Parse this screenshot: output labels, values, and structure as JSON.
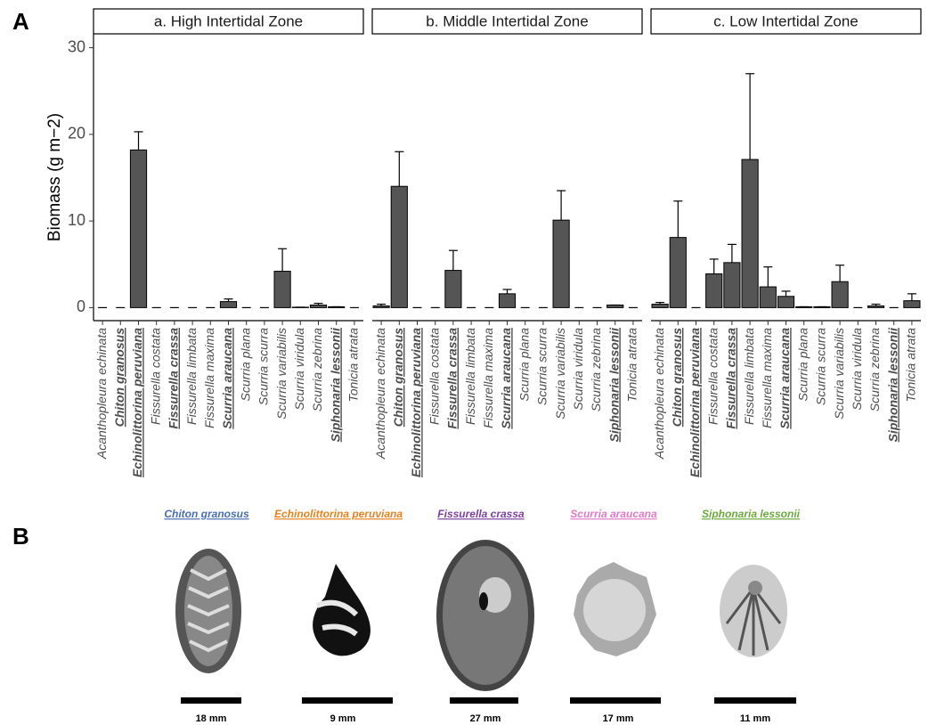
{
  "panel_labels": [
    "A",
    "B"
  ],
  "chart_data": {
    "type": "bar",
    "y_label": "Biomass (g m−2)",
    "categories": [
      "Acanthopleura echinata",
      "Chiton granosus",
      "Echinolittorina peruviana",
      "Fissurella costata",
      "Fissurella crassa",
      "Fissurella limbata",
      "Fissurella maxima",
      "Scurria araucana",
      "Scurria plana",
      "Scurria scurra",
      "Scurria variabilis",
      "Scurria viridula",
      "Scurria zebrina",
      "Siphonaria lessonii",
      "Tonicia atrata"
    ],
    "category_colors": [
      "#444444",
      "#4a6fb0",
      "#e8821e",
      "#444444",
      "#7b3fa0",
      "#444444",
      "#444444",
      "#e07ac6",
      "#444444",
      "#444444",
      "#444444",
      "#444444",
      "#444444",
      "#6aaa3a",
      "#444444"
    ],
    "color": "#555555",
    "ylim": [
      -1.5,
      31.6
    ],
    "yticks": [
      0,
      10,
      20,
      30
    ],
    "facets": [
      {
        "title": "a. High Intertidal Zone",
        "values": [
          0,
          0,
          18.2,
          0,
          0,
          0,
          0,
          0.7,
          0,
          0,
          4.2,
          0.05,
          0.3,
          0.1,
          0
        ],
        "errors": [
          0,
          0,
          2.1,
          0,
          0,
          0,
          0,
          0.3,
          0,
          0,
          2.6,
          0,
          0.2,
          0,
          0
        ]
      },
      {
        "title": "b. Middle Intertidal Zone",
        "values": [
          0.2,
          14.0,
          0,
          0,
          4.3,
          0,
          0,
          1.6,
          0,
          0,
          10.1,
          0,
          0,
          0.3,
          0
        ],
        "errors": [
          0.2,
          4.0,
          0,
          0,
          2.3,
          0,
          0,
          0.5,
          0,
          0,
          3.4,
          0,
          0,
          0,
          0
        ]
      },
      {
        "title": "c. Low Intertidal Zone",
        "values": [
          0.4,
          8.1,
          0,
          3.9,
          5.2,
          17.1,
          2.4,
          1.3,
          0.1,
          0.1,
          3.0,
          0,
          0.2,
          0,
          0.8
        ],
        "errors": [
          0.2,
          4.2,
          0,
          1.7,
          2.1,
          9.9,
          2.3,
          0.6,
          0,
          0,
          1.9,
          0,
          0.2,
          0,
          0.8
        ]
      }
    ]
  },
  "specimens": [
    {
      "name": "Chiton granosus",
      "color": "#4a6fb0",
      "scale": "18 mm"
    },
    {
      "name": "Echinolittorina peruviana",
      "color": "#e8821e",
      "scale": "9 mm"
    },
    {
      "name": "Fissurella crassa",
      "color": "#7b3fa0",
      "scale": "27 mm"
    },
    {
      "name": "Scurria araucana",
      "color": "#e07ac6",
      "scale": "17 mm"
    },
    {
      "name": "Siphonaria lessonii",
      "color": "#6aaa3a",
      "scale": "11 mm"
    }
  ]
}
